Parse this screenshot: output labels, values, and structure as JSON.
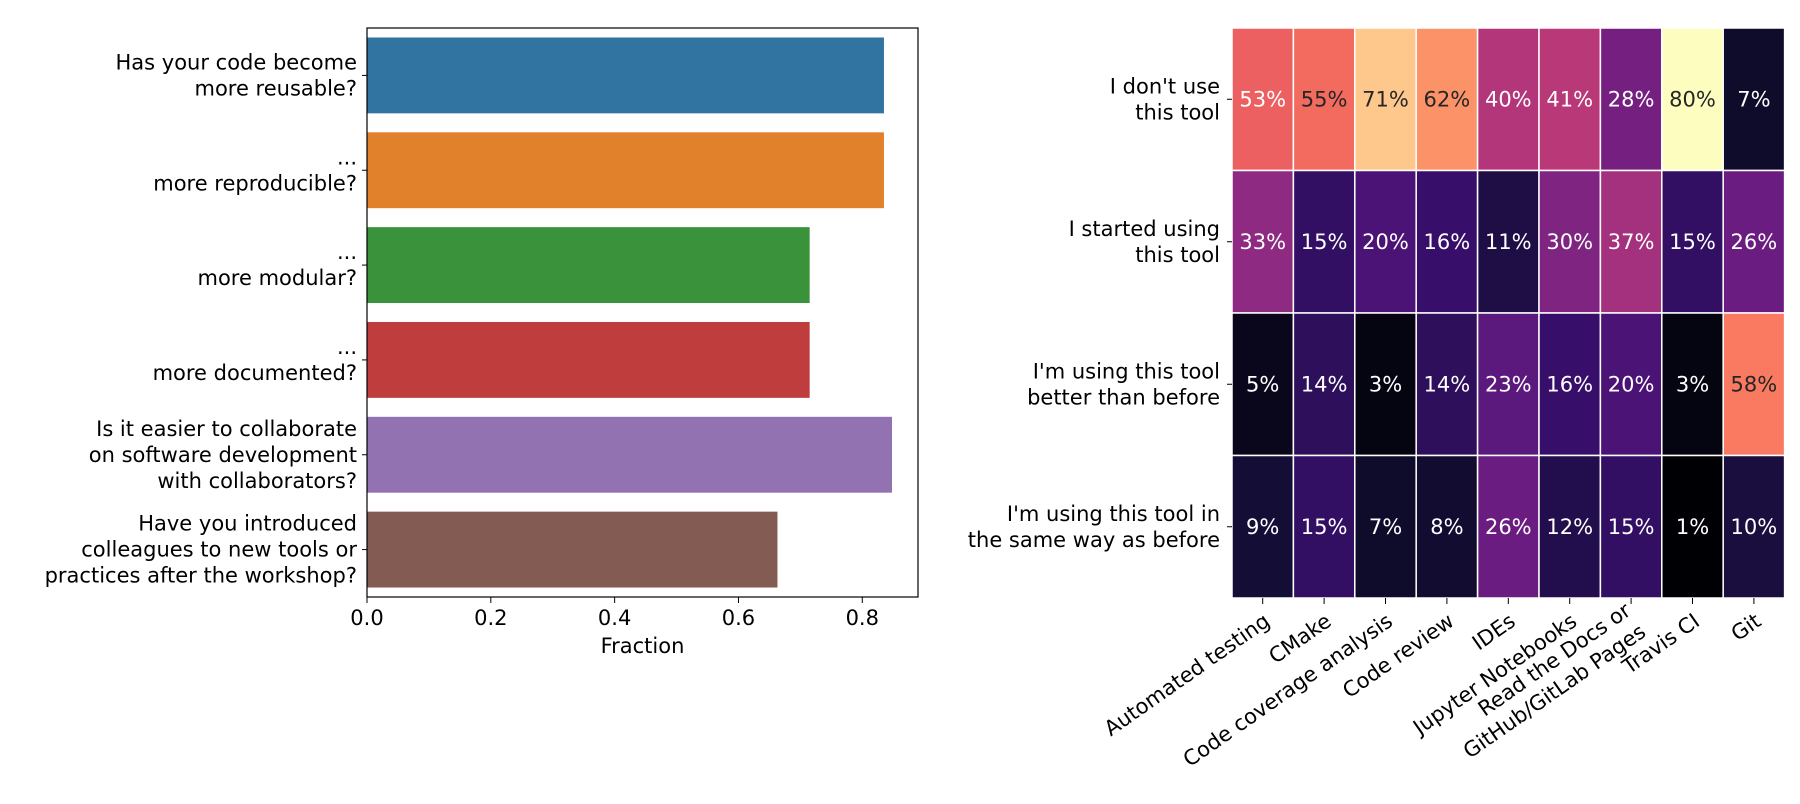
{
  "chart_data": [
    {
      "type": "bar",
      "orientation": "horizontal",
      "categories": [
        "Has your code become\nmore reusable?",
        "...\nmore reproducible?",
        "...\nmore modular?",
        "...\nmore documented?",
        "Is it easier to collaborate\non software development\nwith collaborators?",
        "Have you introduced\ncolleagues to new tools or\npractices after the workshop?"
      ],
      "values": [
        0.835,
        0.835,
        0.715,
        0.715,
        0.848,
        0.663
      ],
      "colors": [
        "#3274a1",
        "#e1812c",
        "#3a923a",
        "#c03d3e",
        "#9372b2",
        "#845b53"
      ],
      "xlabel": "Fraction",
      "xlim": [
        0,
        0.89
      ],
      "xticks": [
        "0.0",
        "0.2",
        "0.4",
        "0.6",
        "0.8"
      ],
      "xtick_values": [
        0,
        0.2,
        0.4,
        0.6,
        0.8
      ],
      "grid": false,
      "legend": "none"
    },
    {
      "type": "heatmap",
      "colormap": "magma",
      "rows": [
        "I don't use\nthis tool",
        "I started using\nthis tool",
        "I'm using this tool\nbetter than before",
        "I'm using this tool in\nthe same way as before"
      ],
      "columns": [
        "Automated testing",
        "CMake",
        "Code coverage analysis",
        "Code review",
        "IDEs",
        "Jupyter Notebooks",
        "Read the Docs or\nGitHub/GitLab Pages",
        "Travis CI",
        "Git"
      ],
      "values": [
        [
          53,
          55,
          71,
          62,
          40,
          41,
          28,
          80,
          7
        ],
        [
          33,
          15,
          20,
          16,
          11,
          30,
          37,
          15,
          26
        ],
        [
          5,
          14,
          3,
          14,
          23,
          16,
          20,
          3,
          58
        ],
        [
          9,
          15,
          7,
          8,
          26,
          12,
          15,
          1,
          10
        ]
      ],
      "value_format": "percent",
      "grid": false,
      "legend": "none"
    }
  ]
}
